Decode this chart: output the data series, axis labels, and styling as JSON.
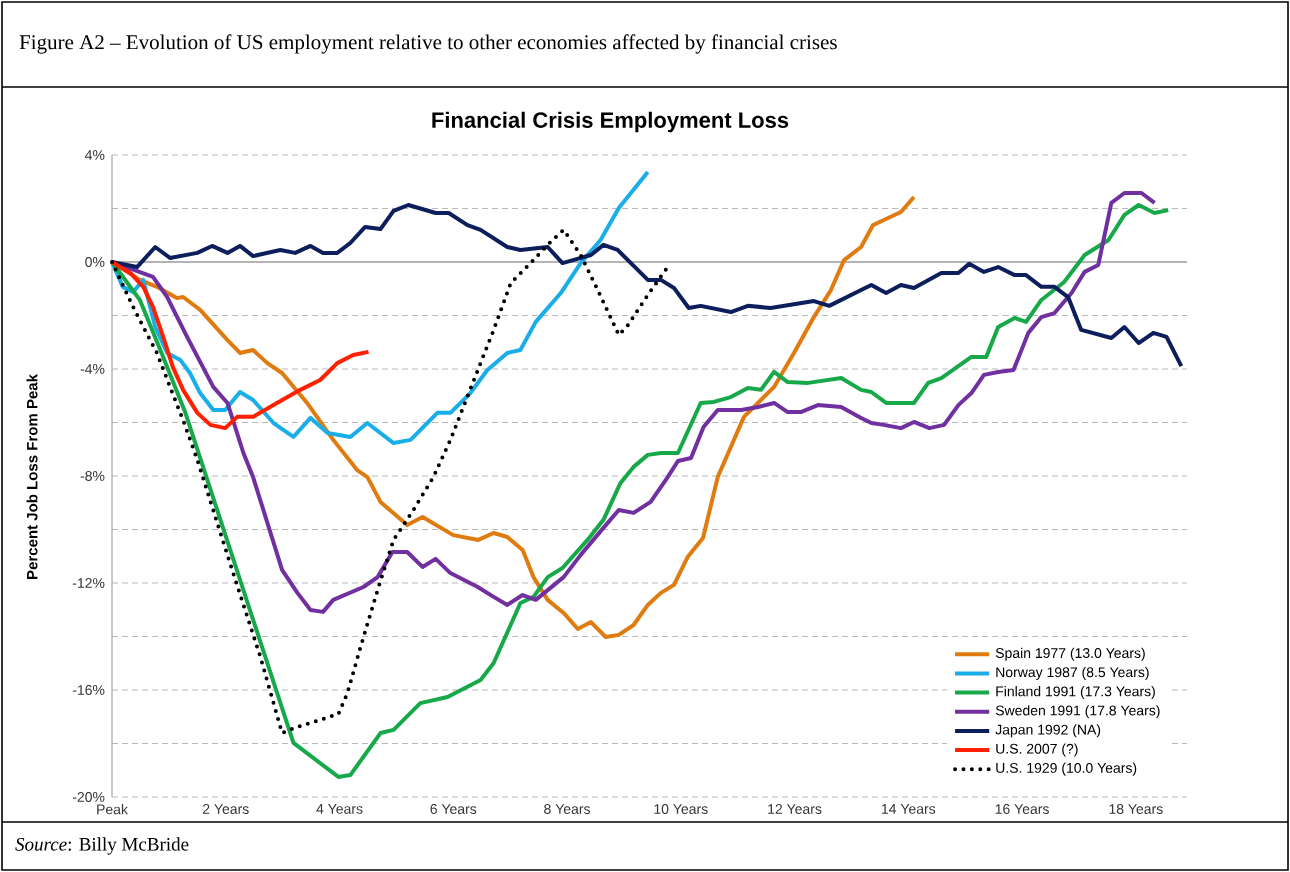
{
  "chart_data": {
    "type": "line",
    "title": "Financial Crisis Employment Loss",
    "ylabel": "Percent Job Loss From Peak",
    "annotations": [
      "Figure A2 – Evolution of US employment relative to other economies affected by financial crises",
      "*Source*: Billy McBride"
    ],
    "xlim": [
      0,
      18.9
    ],
    "ylim": [
      -20,
      4
    ],
    "xticks": [
      {
        "value": 0,
        "label": "Peak"
      },
      {
        "value": 2,
        "label": "2 Years"
      },
      {
        "value": 4,
        "label": "4 Years"
      },
      {
        "value": 6,
        "label": "6 Years"
      },
      {
        "value": 8,
        "label": "8 Years"
      },
      {
        "value": 10,
        "label": "10 Years"
      },
      {
        "value": 12,
        "label": "12 Years"
      },
      {
        "value": 14,
        "label": "14 Years"
      },
      {
        "value": 16,
        "label": "16 Years"
      },
      {
        "value": 18,
        "label": "18 Years"
      }
    ],
    "yticks": [
      {
        "value": -20,
        "label": "-20%"
      },
      {
        "value": -18,
        "label": null
      },
      {
        "value": -16,
        "label": "-16%"
      },
      {
        "value": -14,
        "label": null
      },
      {
        "value": -12,
        "label": "-12%"
      },
      {
        "value": -10,
        "label": null
      },
      {
        "value": -8,
        "label": "-8%"
      },
      {
        "value": -6,
        "label": null
      },
      {
        "value": -4,
        "label": "-4%"
      },
      {
        "value": -2,
        "label": null
      },
      {
        "value": 0,
        "label": "0%"
      },
      {
        "value": 2,
        "label": null
      },
      {
        "value": 4,
        "label": "4%"
      }
    ],
    "grid": "y",
    "legend": "bottom right",
    "ref_lines": [
      {
        "axis": "y",
        "value": 0,
        "color": "#b4b4b4"
      }
    ],
    "series": [
      {
        "name": "Spain 1977 (13.0 Years)",
        "color": "#e07b10",
        "x": [
          0,
          0.49,
          0.79,
          1.14,
          1.25,
          1.55,
          2.03,
          2.25,
          2.48,
          2.73,
          2.99,
          3.43,
          3.89,
          4.31,
          4.49,
          4.72,
          5.19,
          5.46,
          6.0,
          6.44,
          6.71,
          6.95,
          7.22,
          7.41,
          7.66,
          7.94,
          8.19,
          8.42,
          8.68,
          8.91,
          9.17,
          9.42,
          9.65,
          9.88,
          10.12,
          10.39,
          10.65,
          11.11,
          11.64,
          11.99,
          12.34,
          12.64,
          12.87,
          13.17,
          13.38,
          13.57,
          13.87,
          14.1
        ],
        "values": [
          0,
          -0.67,
          -0.93,
          -1.35,
          -1.31,
          -1.79,
          -2.92,
          -3.4,
          -3.29,
          -3.78,
          -4.15,
          -5.27,
          -6.65,
          -7.78,
          -8.04,
          -8.97,
          -9.83,
          -9.53,
          -10.21,
          -10.39,
          -10.13,
          -10.28,
          -10.77,
          -11.78,
          -12.63,
          -13.12,
          -13.72,
          -13.46,
          -14.02,
          -13.94,
          -13.57,
          -12.82,
          -12.37,
          -12.07,
          -11.03,
          -10.32,
          -8.04,
          -5.79,
          -4.67,
          -3.4,
          -2.06,
          -1.05,
          0.07,
          0.56,
          1.38,
          1.57,
          1.87,
          2.43
        ]
      },
      {
        "name": "Norway 1987 (8.5 Years)",
        "color": "#1aaee8",
        "x": [
          0,
          0.19,
          0.37,
          0.55,
          0.76,
          0.97,
          1.2,
          1.37,
          1.55,
          1.78,
          1.99,
          2.25,
          2.48,
          2.84,
          3.19,
          3.49,
          3.79,
          4.19,
          4.49,
          4.95,
          5.25,
          5.72,
          5.95,
          6.3,
          6.6,
          6.95,
          7.18,
          7.45,
          7.89,
          8.24,
          8.59,
          8.91,
          9.42
        ],
        "values": [
          0,
          -0.93,
          -1.12,
          -0.67,
          -2.43,
          -3.4,
          -3.66,
          -4.15,
          -4.9,
          -5.53,
          -5.53,
          -4.86,
          -5.16,
          -6.02,
          -6.54,
          -5.83,
          -6.39,
          -6.54,
          -6.02,
          -6.77,
          -6.65,
          -5.64,
          -5.64,
          -4.9,
          -4.04,
          -3.4,
          -3.29,
          -2.24,
          -1.16,
          -0.04,
          0.82,
          2.02,
          3.36
        ]
      },
      {
        "name": "Finland 1991 (17.3 Years)",
        "color": "#17a84a",
        "x": [
          0,
          0.49,
          0.85,
          1.29,
          3.19,
          3.98,
          4.19,
          4.72,
          4.95,
          5.42,
          5.9,
          6.48,
          6.71,
          7.18,
          7.41,
          7.66,
          7.92,
          8.36,
          8.64,
          8.94,
          9.17,
          9.42,
          9.65,
          9.95,
          10.35,
          10.58,
          10.88,
          11.18,
          11.41,
          11.64,
          11.88,
          12.24,
          12.82,
          13.17,
          13.35,
          13.61,
          14.1,
          14.35,
          14.58,
          15.11,
          15.37,
          15.58,
          15.87,
          16.07,
          16.34,
          16.74,
          17.1,
          17.52,
          17.8,
          18.05,
          18.33,
          18.57
        ],
        "values": [
          0,
          -1.42,
          -3.29,
          -5.64,
          -17.98,
          -19.25,
          -19.18,
          -17.61,
          -17.49,
          -16.49,
          -16.26,
          -15.63,
          -14.99,
          -12.75,
          -12.52,
          -11.78,
          -11.44,
          -10.39,
          -9.64,
          -8.26,
          -7.66,
          -7.21,
          -7.14,
          -7.14,
          -5.27,
          -5.23,
          -5.05,
          -4.71,
          -4.78,
          -4.11,
          -4.49,
          -4.52,
          -4.34,
          -4.78,
          -4.86,
          -5.27,
          -5.27,
          -4.52,
          -4.34,
          -3.55,
          -3.55,
          -2.43,
          -2.09,
          -2.24,
          -1.42,
          -0.75,
          0.26,
          0.82,
          1.76,
          2.13,
          1.83,
          1.94
        ]
      },
      {
        "name": "Sweden 1991 (17.8 Years)",
        "color": "#7030a0",
        "x": [
          0,
          0.72,
          0.97,
          1.32,
          1.78,
          2.03,
          2.31,
          2.48,
          2.99,
          3.26,
          3.49,
          3.71,
          3.89,
          4.42,
          4.67,
          4.93,
          5.19,
          5.46,
          5.69,
          5.95,
          6.43,
          6.71,
          6.95,
          7.22,
          7.45,
          7.94,
          8.24,
          8.64,
          8.91,
          9.17,
          9.47,
          9.77,
          9.95,
          10.18,
          10.4,
          10.65,
          11.06,
          11.36,
          11.64,
          11.88,
          12.11,
          12.41,
          12.82,
          13.17,
          13.35,
          13.57,
          13.87,
          14.1,
          14.37,
          14.63,
          14.88,
          15.11,
          15.33,
          15.58,
          15.85,
          16.11,
          16.34,
          16.57,
          16.87,
          17.1,
          17.34,
          17.57,
          17.8,
          18.1,
          18.33
        ],
        "values": [
          0,
          -0.56,
          -1.31,
          -2.8,
          -4.67,
          -5.27,
          -7.14,
          -8.04,
          -11.51,
          -12.37,
          -13.01,
          -13.08,
          -12.63,
          -12.15,
          -11.78,
          -10.84,
          -10.84,
          -11.4,
          -11.1,
          -11.63,
          -12.15,
          -12.52,
          -12.82,
          -12.45,
          -12.63,
          -11.78,
          -10.95,
          -9.94,
          -9.27,
          -9.38,
          -8.97,
          -8.04,
          -7.44,
          -7.33,
          -6.17,
          -5.53,
          -5.53,
          -5.42,
          -5.27,
          -5.61,
          -5.61,
          -5.35,
          -5.42,
          -5.83,
          -6.02,
          -6.09,
          -6.21,
          -5.98,
          -6.21,
          -6.09,
          -5.35,
          -4.9,
          -4.22,
          -4.11,
          -4.04,
          -2.65,
          -2.06,
          -1.91,
          -1.16,
          -0.37,
          -0.11,
          2.21,
          2.58,
          2.58,
          2.21
        ]
      },
      {
        "name": "Japan 1992 (NA)",
        "color": "#0c1f5c",
        "x": [
          0,
          0.44,
          0.76,
          1.02,
          1.5,
          1.76,
          2.03,
          2.25,
          2.48,
          2.96,
          3.22,
          3.49,
          3.71,
          3.96,
          4.19,
          4.45,
          4.72,
          4.95,
          5.21,
          5.69,
          5.92,
          6.25,
          6.48,
          6.95,
          7.18,
          7.66,
          7.92,
          8.42,
          8.64,
          8.89,
          9.42,
          9.65,
          9.88,
          10.14,
          10.35,
          10.88,
          11.18,
          11.58,
          12.34,
          12.61,
          13.17,
          13.35,
          13.61,
          13.87,
          14.1,
          14.58,
          14.88,
          15.07,
          15.33,
          15.58,
          15.87,
          16.07,
          16.34,
          16.57,
          16.81,
          17.04,
          17.57,
          17.8,
          18.05,
          18.31,
          18.54,
          18.8
        ],
        "values": [
          0,
          -0.19,
          0.56,
          0.15,
          0.34,
          0.6,
          0.34,
          0.6,
          0.22,
          0.45,
          0.34,
          0.6,
          0.34,
          0.34,
          0.71,
          1.31,
          1.23,
          1.91,
          2.13,
          1.83,
          1.83,
          1.38,
          1.2,
          0.56,
          0.45,
          0.56,
          -0.04,
          0.26,
          0.64,
          0.45,
          -0.67,
          -0.67,
          -0.97,
          -1.72,
          -1.64,
          -1.87,
          -1.64,
          -1.72,
          -1.46,
          -1.64,
          -1.05,
          -0.86,
          -1.16,
          -0.86,
          -0.97,
          -0.41,
          -0.41,
          -0.07,
          -0.37,
          -0.19,
          -0.49,
          -0.49,
          -0.93,
          -0.93,
          -1.31,
          -2.54,
          -2.84,
          -2.43,
          -3.03,
          -2.65,
          -2.8,
          -3.89
        ]
      },
      {
        "name": "U.S. 2007 (?)",
        "color": "#ff2000",
        "x": [
          0,
          0.32,
          0.55,
          0.72,
          0.9,
          1.07,
          1.25,
          1.5,
          1.73,
          1.99,
          2.2,
          2.48,
          2.9,
          3.31,
          3.66,
          3.96,
          4.24,
          4.51
        ],
        "values": [
          0,
          -0.41,
          -0.93,
          -1.68,
          -2.8,
          -3.93,
          -4.78,
          -5.64,
          -6.09,
          -6.21,
          -5.79,
          -5.79,
          -5.27,
          -4.78,
          -4.41,
          -3.78,
          -3.48,
          -3.36
        ]
      },
      {
        "name": "U.S. 1929 (10.0 Years)",
        "color": "#000000",
        "line_style": "dotted",
        "x": [
          0,
          0.37,
          0.55,
          0.79,
          1.02,
          1.25,
          1.5,
          2.13,
          2.61,
          2.99,
          3.26,
          3.98,
          4.14,
          4.37,
          4.67,
          4.95,
          5.3,
          5.65,
          5.95,
          6.48,
          6.71,
          7.01,
          7.36,
          7.71,
          7.94,
          8.24,
          8.54,
          8.91,
          9.07,
          9.42,
          9.82
        ],
        "values": [
          0,
          -1.68,
          -2.43,
          -3.4,
          -4.67,
          -5.91,
          -7.4,
          -11.63,
          -14.77,
          -17.61,
          -17.38,
          -16.9,
          -16.11,
          -14.39,
          -12.26,
          -10.39,
          -9.27,
          -8.04,
          -6.65,
          -3.78,
          -2.54,
          -0.79,
          -0.04,
          0.75,
          1.2,
          0.26,
          -1.05,
          -2.73,
          -2.36,
          -1.23,
          -0.04
        ]
      }
    ]
  }
}
